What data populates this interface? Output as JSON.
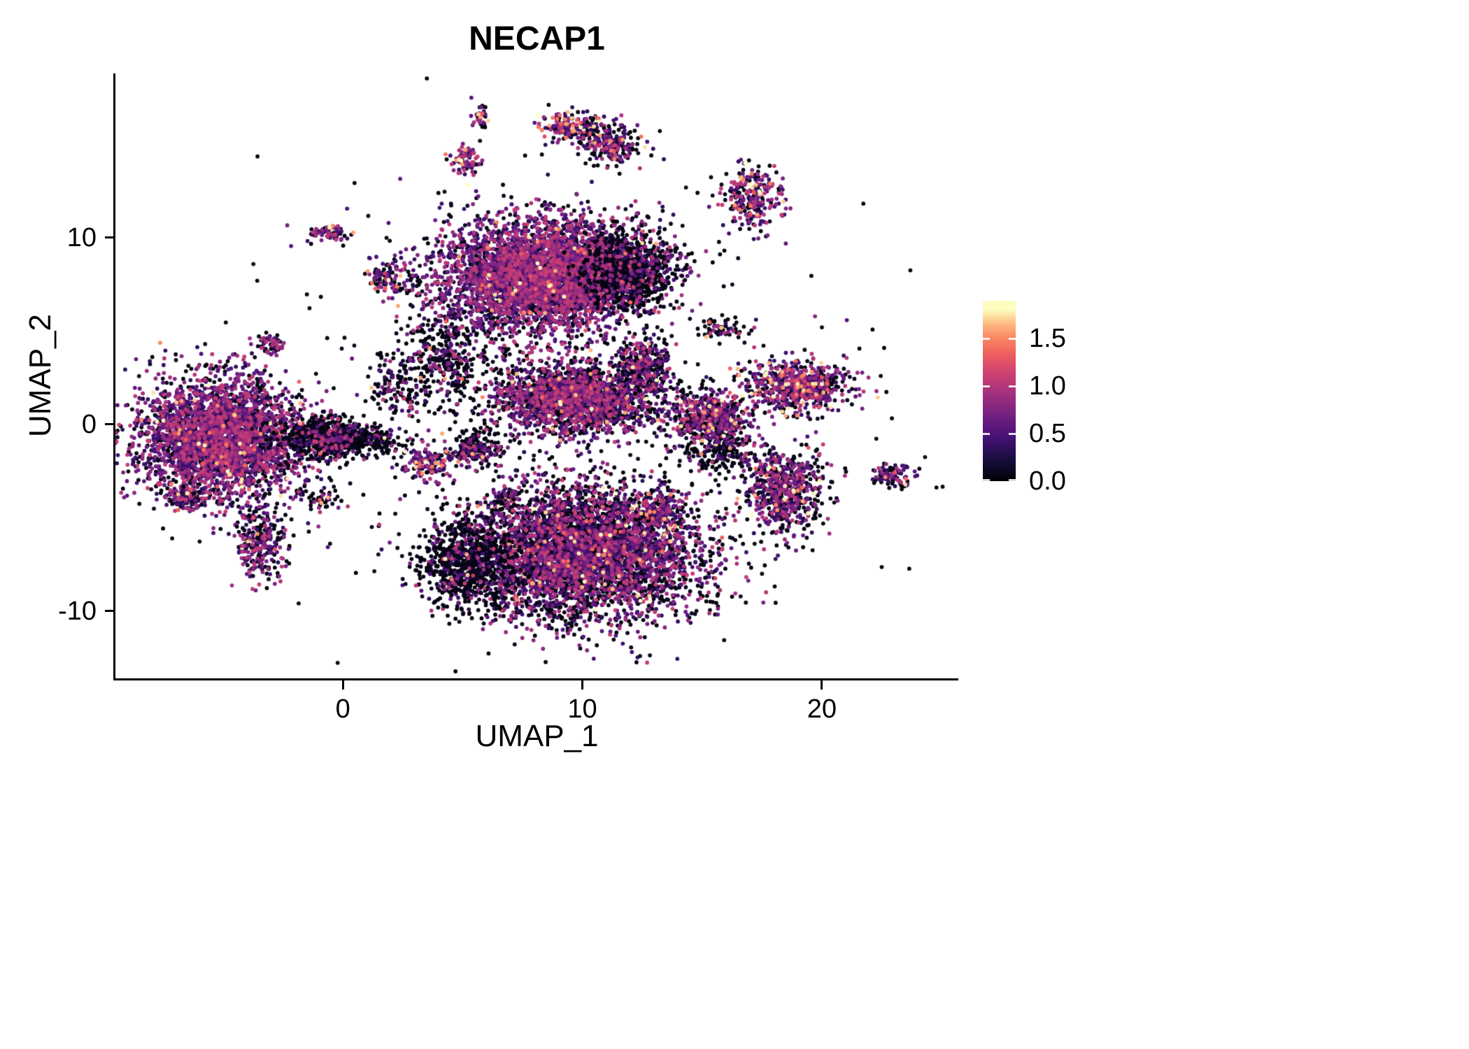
{
  "chart_data": {
    "type": "scatter",
    "title": "NECAP1",
    "xlabel": "UMAP_1",
    "ylabel": "UMAP_2",
    "xlim": [
      -9.5,
      25.7
    ],
    "ylim": [
      -13.6,
      18.8
    ],
    "grid": false,
    "seed": 42,
    "point_radius_px": 2.9,
    "xticks": [
      {
        "value": 0,
        "label": "0"
      },
      {
        "value": 10,
        "label": "10"
      },
      {
        "value": 20,
        "label": "20"
      }
    ],
    "yticks": [
      {
        "value": 10,
        "label": "10"
      },
      {
        "value": 0,
        "label": "0"
      },
      {
        "value": -10,
        "label": "-10"
      }
    ],
    "legend": {
      "type": "colorbar",
      "position": "right",
      "vmax_display": 1.9,
      "vmax_color": 1.8,
      "ticks": [
        {
          "value": 1.5,
          "label": "1.5"
        },
        {
          "value": 1.0,
          "label": "1.0"
        },
        {
          "value": 0.5,
          "label": "0.5"
        },
        {
          "value": 0.0,
          "label": "0.0"
        }
      ],
      "colormap": "magma",
      "colormap_stops": [
        [
          0.0,
          0,
          0,
          4
        ],
        [
          0.13,
          24,
          15,
          62
        ],
        [
          0.25,
          68,
          15,
          118
        ],
        [
          0.38,
          114,
          31,
          129
        ],
        [
          0.5,
          158,
          47,
          127
        ],
        [
          0.63,
          205,
          64,
          113
        ],
        [
          0.75,
          241,
          96,
          93
        ],
        [
          0.87,
          253,
          150,
          104
        ],
        [
          0.94,
          254,
          202,
          141
        ],
        [
          1.0,
          252,
          253,
          191
        ]
      ]
    },
    "clusters": [
      {
        "name": "background-noise",
        "n": 260,
        "cx": 8.0,
        "cy": 1.5,
        "sx": 7.5,
        "sy": 6.5,
        "p_zero": 0.82,
        "p_high": 0.004
      },
      {
        "name": "connector-strand",
        "n": 170,
        "cx": 1.0,
        "cy": -0.9,
        "sx": 0.95,
        "sy": 0.35,
        "p_zero": 0.8,
        "p_high": 0.005
      },
      {
        "name": "diagonal-strand",
        "n": 140,
        "cx": 2.3,
        "cy": 2.1,
        "sx": 0.7,
        "sy": 0.95,
        "p_zero": 0.75,
        "p_high": 0.01
      },
      {
        "name": "strand-below-top-cluster",
        "n": 380,
        "cx": 4.3,
        "cy": 3.8,
        "sx": 0.85,
        "sy": 1.3,
        "p_zero": 0.74,
        "p_high": 0.01
      },
      {
        "name": "left-main",
        "n": 3300,
        "cx": -5.1,
        "cy": -0.8,
        "sx": 1.7,
        "sy": 1.6,
        "p_zero": 0.33,
        "p_high": 0.015
      },
      {
        "name": "left-main-right-lobe",
        "n": 620,
        "cx": -0.6,
        "cy": -0.7,
        "sx": 1.05,
        "sy": 0.55,
        "p_zero": 0.78,
        "p_high": 0.005
      },
      {
        "name": "left-tail",
        "n": 260,
        "cx": -3.5,
        "cy": -6.4,
        "sx": 0.5,
        "sy": 1.0,
        "p_zero": 0.45,
        "p_high": 0.02
      },
      {
        "name": "left-edge-small",
        "n": 70,
        "cx": -6.6,
        "cy": -4.0,
        "sx": 0.28,
        "sy": 0.3,
        "p_zero": 0.3,
        "p_high": 0.06
      },
      {
        "name": "left-upper-tiny",
        "n": 60,
        "cx": -3.0,
        "cy": 4.3,
        "sx": 0.3,
        "sy": 0.25,
        "p_zero": 0.35,
        "p_high": 0.03
      },
      {
        "name": "top-left-tiny-pair",
        "n": 70,
        "cx": -0.6,
        "cy": 10.2,
        "sx": 0.45,
        "sy": 0.22,
        "p_zero": 0.3,
        "p_high": 0.06
      },
      {
        "name": "upper-small-elongated",
        "n": 110,
        "cx": 2.0,
        "cy": 7.8,
        "sx": 0.5,
        "sy": 0.55,
        "p_zero": 0.35,
        "p_high": 0.07
      },
      {
        "name": "top-main",
        "n": 4300,
        "cx": 8.4,
        "cy": 8.0,
        "sx": 2.1,
        "sy": 1.5,
        "p_zero": 0.3,
        "p_high": 0.012
      },
      {
        "name": "top-main-right-dark",
        "n": 820,
        "cx": 12.0,
        "cy": 8.2,
        "sx": 1.0,
        "sy": 1.1,
        "p_zero": 0.72,
        "p_high": 0.008
      },
      {
        "name": "mid-wing",
        "n": 2100,
        "cx": 9.8,
        "cy": 1.4,
        "sx": 1.8,
        "sy": 0.95,
        "p_zero": 0.42,
        "p_high": 0.02
      },
      {
        "name": "mid-wing-tip",
        "n": 300,
        "cx": 12.6,
        "cy": 3.2,
        "sx": 0.6,
        "sy": 0.7,
        "p_zero": 0.5,
        "p_high": 0.02
      },
      {
        "name": "small-dark-blob",
        "n": 200,
        "cx": 5.6,
        "cy": -1.3,
        "sx": 0.55,
        "sy": 0.5,
        "p_zero": 0.7,
        "p_high": 0.02
      },
      {
        "name": "small-purple-blob",
        "n": 130,
        "cx": 3.5,
        "cy": -2.1,
        "sx": 0.5,
        "sy": 0.45,
        "p_zero": 0.3,
        "p_high": 0.08
      },
      {
        "name": "tiny-bright-blob",
        "n": 45,
        "cx": 6.8,
        "cy": -4.0,
        "sx": 0.3,
        "sy": 0.3,
        "p_zero": 0.25,
        "p_high": 0.25
      },
      {
        "name": "bottom-main",
        "n": 4700,
        "cx": 10.0,
        "cy": -6.8,
        "sx": 2.5,
        "sy": 1.8,
        "p_zero": 0.52,
        "p_high": 0.015
      },
      {
        "name": "bottom-left-dark",
        "n": 720,
        "cx": 5.2,
        "cy": -7.4,
        "sx": 0.9,
        "sy": 1.1,
        "p_zero": 0.85,
        "p_high": 0.004
      },
      {
        "name": "bottom-orange-pocket",
        "n": 150,
        "cx": 13.0,
        "cy": -4.6,
        "sx": 0.7,
        "sy": 0.5,
        "p_zero": 0.3,
        "p_high": 0.12
      },
      {
        "name": "bottom-right-connector",
        "n": 160,
        "cx": 15.8,
        "cy": -1.6,
        "sx": 0.8,
        "sy": 0.6,
        "p_zero": 0.8,
        "p_high": 0.01
      },
      {
        "name": "right-mid-small",
        "n": 560,
        "cx": 15.3,
        "cy": 0.2,
        "sx": 0.85,
        "sy": 0.75,
        "p_zero": 0.45,
        "p_high": 0.04
      },
      {
        "name": "right-upper",
        "n": 660,
        "cx": 19.0,
        "cy": 2.1,
        "sx": 1.15,
        "sy": 0.65,
        "p_zero": 0.3,
        "p_high": 0.06
      },
      {
        "name": "right-lower",
        "n": 660,
        "cx": 18.5,
        "cy": -3.5,
        "sx": 0.8,
        "sy": 1.1,
        "p_zero": 0.45,
        "p_high": 0.03
      },
      {
        "name": "far-right-small",
        "n": 90,
        "cx": 23.0,
        "cy": -2.8,
        "sx": 0.4,
        "sy": 0.35,
        "p_zero": 0.35,
        "p_high": 0.06
      },
      {
        "name": "top-right",
        "n": 260,
        "cx": 17.1,
        "cy": 12.2,
        "sx": 0.65,
        "sy": 0.85,
        "p_zero": 0.3,
        "p_high": 0.08
      },
      {
        "name": "top-tiny",
        "n": 35,
        "cx": 5.8,
        "cy": 16.5,
        "sx": 0.2,
        "sy": 0.3,
        "p_zero": 0.25,
        "p_high": 0.15
      },
      {
        "name": "top-wing-bright",
        "n": 180,
        "cx": 9.6,
        "cy": 16.0,
        "sx": 0.7,
        "sy": 0.4,
        "p_zero": 0.3,
        "p_high": 0.18
      },
      {
        "name": "top-wing-dark",
        "n": 210,
        "cx": 11.2,
        "cy": 15.0,
        "sx": 0.7,
        "sy": 0.5,
        "p_zero": 0.5,
        "p_high": 0.04
      },
      {
        "name": "small-magenta-top",
        "n": 80,
        "cx": 5.1,
        "cy": 14.1,
        "sx": 0.3,
        "sy": 0.35,
        "p_zero": 0.2,
        "p_high": 0.12
      },
      {
        "name": "sparse-right-upper",
        "n": 70,
        "cx": 15.8,
        "cy": 5.2,
        "sx": 0.6,
        "sy": 0.3,
        "p_zero": 0.7,
        "p_high": 0.05
      },
      {
        "name": "tiny-dark-pair",
        "n": 45,
        "cx": -1.0,
        "cy": -4.0,
        "sx": 0.35,
        "sy": 0.25,
        "p_zero": 0.6,
        "p_high": 0.1
      }
    ]
  }
}
